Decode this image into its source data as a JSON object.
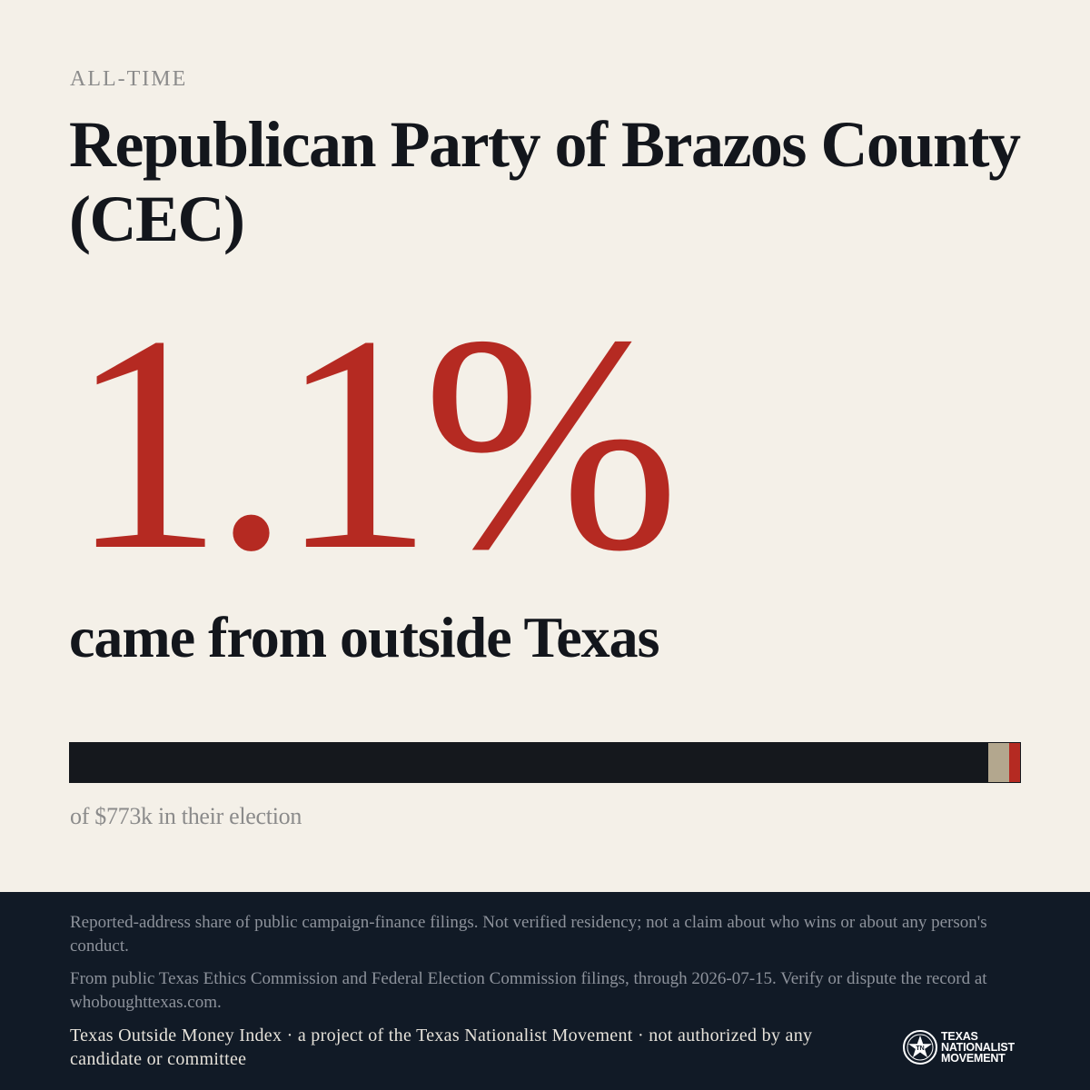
{
  "header": {
    "eyebrow": "ALL-TIME",
    "title": "Republican Party of Brazos County (CEC)"
  },
  "stat": {
    "value": "1.1%",
    "label": "came from outside Texas",
    "outside_share_percent": 1.1
  },
  "bar": {
    "segments": [
      {
        "key": "texas",
        "color": "#15181d"
      },
      {
        "key": "other",
        "color": "#b3a78e"
      },
      {
        "key": "outside_texas",
        "color": "#b52a22"
      }
    ]
  },
  "caption": "of $773k in their election",
  "footer": {
    "note1": "Reported-address share of public campaign-finance filings. Not verified residency; not a claim about who wins or about any person's conduct.",
    "note2": "From public Texas Ethics Commission and Federal Election Commission filings, through 2026-07-15. Verify or dispute the record at whoboughttexas.com.",
    "note3": "Texas Outside Money Index · a project of the Texas Nationalist Movement · not authorized by any candidate or committee",
    "logo": {
      "icon": "star-seal-icon",
      "line1": "TEXAS",
      "line2": "NATIONALIST",
      "line3": "MOVEMENT"
    }
  },
  "colors": {
    "accent": "#b52a22",
    "background": "#f4f0e8",
    "footer_bg": "#111a26",
    "ink": "#13161c"
  }
}
